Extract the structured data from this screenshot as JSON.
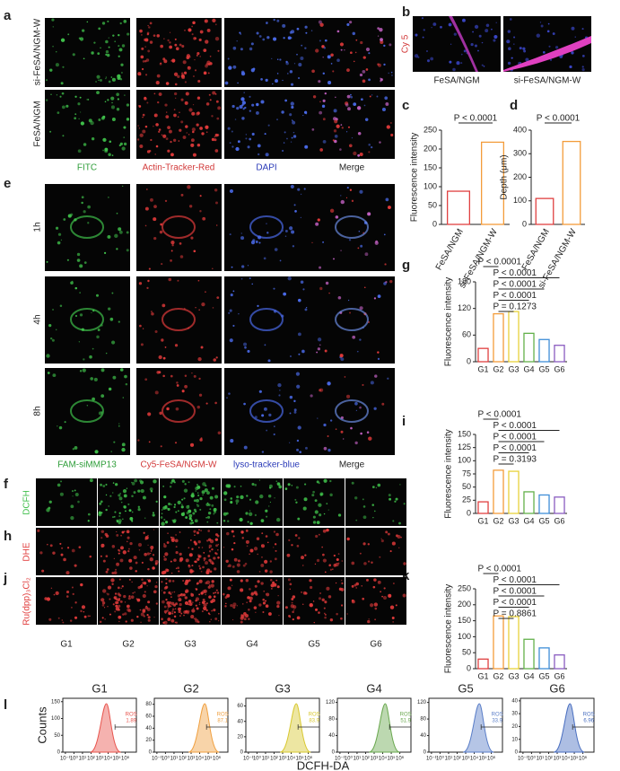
{
  "panels": {
    "letters": [
      "a",
      "b",
      "c",
      "d",
      "e",
      "f",
      "g",
      "h",
      "i",
      "j",
      "k",
      "l"
    ],
    "a": {
      "rows": [
        "si-FeSA/NGM-W",
        "FeSA/NGM"
      ],
      "columns": [
        "FITC",
        "Actin-Tracker-Red",
        "DAPI",
        "Merge"
      ]
    },
    "b": {
      "channel": "Cy 5",
      "columns": [
        "FeSA/NGM",
        "si-FeSA/NGM-W"
      ]
    },
    "e": {
      "rows": [
        "1h",
        "4h",
        "8h"
      ],
      "columns": [
        "FAM-siMMP13",
        "Cy5-FeSA/NGM-W",
        "lyso-tracker-blue",
        "Merge"
      ]
    },
    "fhj": {
      "rows": [
        "DCFH",
        "DHE",
        "Ru(dpp)₃Cl₂"
      ],
      "columns": [
        "G1",
        "G2",
        "G3",
        "G4",
        "G5",
        "G6"
      ]
    },
    "l": {
      "y_label": "Counts",
      "x_label": "DCFH-DA"
    }
  },
  "chart_data": [
    {
      "type": "bar",
      "y_label": "Fluorescence intensity",
      "categories": [
        "FeSA/NGM",
        "si-FeSA/NGM-W"
      ],
      "values": [
        88,
        218
      ],
      "colors": [
        "#e04040",
        "#f39c3a"
      ],
      "ylim": [
        0,
        250
      ],
      "yticks": [
        0,
        50,
        100,
        150,
        200,
        250
      ],
      "annotations": [
        "P < 0.0001"
      ]
    },
    {
      "type": "bar",
      "y_label": "Depth (μm)",
      "categories": [
        "FeSA/NGM",
        "si-FeSA/NGM-W"
      ],
      "values": [
        110,
        352
      ],
      "colors": [
        "#e04040",
        "#f39c3a"
      ],
      "ylim": [
        0,
        400
      ],
      "yticks": [
        0,
        100,
        200,
        300,
        400
      ],
      "annotations": [
        "P < 0.0001"
      ]
    },
    {
      "type": "bar",
      "y_label": "Fluorescence intensity",
      "categories": [
        "G1",
        "G2",
        "G3",
        "G4",
        "G5",
        "G6"
      ],
      "values": [
        30,
        108,
        113,
        64,
        50,
        37
      ],
      "colors": [
        "#e04040",
        "#f39c3a",
        "#e8d23a",
        "#63b04a",
        "#3f8ed8",
        "#8a5cc0"
      ],
      "ylim": [
        0,
        180
      ],
      "yticks": [
        0,
        60,
        120,
        180
      ],
      "annotations": [
        "P < 0.0001",
        "P < 0.0001",
        "P < 0.0001",
        "P < 0.0001",
        "P = 0.1273"
      ]
    },
    {
      "type": "bar",
      "y_label": "Fluorescence intensity",
      "categories": [
        "G1",
        "G2",
        "G3",
        "G4",
        "G5",
        "G6"
      ],
      "values": [
        22,
        82,
        80,
        41,
        35,
        31
      ],
      "colors": [
        "#e04040",
        "#f39c3a",
        "#e8d23a",
        "#63b04a",
        "#3f8ed8",
        "#8a5cc0"
      ],
      "ylim": [
        0,
        150
      ],
      "yticks": [
        0,
        25,
        50,
        75,
        100,
        125,
        150
      ],
      "annotations": [
        "P < 0.0001",
        "P < 0.0001",
        "P < 0.0001",
        "P < 0.0001",
        "P = 0.3193"
      ]
    },
    {
      "type": "bar",
      "y_label": "Fluorescence intensity",
      "categories": [
        "G1",
        "G2",
        "G3",
        "G4",
        "G5",
        "G6"
      ],
      "values": [
        30,
        165,
        163,
        92,
        65,
        43
      ],
      "colors": [
        "#e04040",
        "#f39c3a",
        "#e8d23a",
        "#63b04a",
        "#3f8ed8",
        "#8a5cc0"
      ],
      "ylim": [
        0,
        250
      ],
      "yticks": [
        0,
        50,
        100,
        150,
        200,
        250
      ],
      "annotations": [
        "P < 0.0001",
        "P < 0.0001",
        "P < 0.0001",
        "P < 0.0001",
        "P = 0.8861"
      ]
    },
    {
      "type": "flow",
      "title": "G1",
      "annotation": "ROS",
      "value": 1.89,
      "color": "#e8554e",
      "ylim": [
        0,
        160
      ],
      "yticks": [
        0,
        50,
        100,
        150
      ],
      "log_x": true,
      "xlim": [
        0.05,
        20000000
      ],
      "xticks": [
        {
          "value": 0.1,
          "label": "10⁻¹"
        },
        {
          "value": 1,
          "label": "10⁰"
        },
        {
          "value": 10,
          "label": "10¹"
        },
        {
          "value": 100,
          "label": "10²"
        },
        {
          "value": 1000,
          "label": "10³"
        },
        {
          "value": 10000,
          "label": "10⁴"
        },
        {
          "value": 100000,
          "label": "10⁵"
        },
        {
          "value": 1000000,
          "label": "10⁶"
        }
      ]
    },
    {
      "type": "flow",
      "title": "G2",
      "annotation": "ROS",
      "value": 87.1,
      "color": "#f0a040",
      "ylim": [
        0,
        90
      ],
      "yticks": [
        0,
        20,
        40,
        60,
        80
      ],
      "log_x": true,
      "xlim": [
        0.05,
        20000000
      ],
      "xticks": [
        {
          "value": 0.1,
          "label": "10⁻¹"
        },
        {
          "value": 1,
          "label": "10⁰"
        },
        {
          "value": 10,
          "label": "10¹"
        },
        {
          "value": 100,
          "label": "10²"
        },
        {
          "value": 1000,
          "label": "10³"
        },
        {
          "value": 10000,
          "label": "10⁴"
        },
        {
          "value": 100000,
          "label": "10⁵"
        },
        {
          "value": 1000000,
          "label": "10⁶"
        }
      ]
    },
    {
      "type": "flow",
      "title": "G3",
      "annotation": "ROS",
      "value": 83.9,
      "color": "#d8c830",
      "ylim": [
        0,
        70
      ],
      "yticks": [
        0,
        20,
        40,
        60
      ],
      "log_x": true,
      "xlim": [
        0.05,
        20000000
      ],
      "xticks": [
        {
          "value": 0.1,
          "label": "10⁻¹"
        },
        {
          "value": 1,
          "label": "10⁰"
        },
        {
          "value": 10,
          "label": "10¹"
        },
        {
          "value": 100,
          "label": "10²"
        },
        {
          "value": 1000,
          "label": "10³"
        },
        {
          "value": 10000,
          "label": "10⁴"
        },
        {
          "value": 100000,
          "label": "10⁵"
        },
        {
          "value": 1000000,
          "label": "10⁶"
        }
      ]
    },
    {
      "type": "flow",
      "title": "G4",
      "annotation": "ROS",
      "value": 51.9,
      "color": "#6aa84f",
      "ylim": [
        0,
        130
      ],
      "yticks": [
        0,
        40,
        80,
        120
      ],
      "log_x": true,
      "xlim": [
        0.05,
        20000000
      ],
      "xticks": [
        {
          "value": 0.1,
          "label": "10⁻¹"
        },
        {
          "value": 1,
          "label": "10⁰"
        },
        {
          "value": 10,
          "label": "10¹"
        },
        {
          "value": 100,
          "label": "10²"
        },
        {
          "value": 1000,
          "label": "10³"
        },
        {
          "value": 10000,
          "label": "10⁴"
        },
        {
          "value": 100000,
          "label": "10⁵"
        },
        {
          "value": 1000000,
          "label": "10⁶"
        }
      ]
    },
    {
      "type": "flow",
      "title": "G5",
      "annotation": "ROS",
      "value": 33.9,
      "color": "#5a7ec8",
      "ylim": [
        0,
        130
      ],
      "yticks": [
        0,
        40,
        80,
        120
      ],
      "log_x": true,
      "xlim": [
        0.05,
        20000000
      ],
      "xticks": [
        {
          "value": 0.1,
          "label": "10⁻¹"
        },
        {
          "value": 1,
          "label": "10⁰"
        },
        {
          "value": 10,
          "label": "10¹"
        },
        {
          "value": 100,
          "label": "10²"
        },
        {
          "value": 1000,
          "label": "10³"
        },
        {
          "value": 10000,
          "label": "10⁴"
        },
        {
          "value": 100000,
          "label": "10⁵"
        },
        {
          "value": 1000000,
          "label": "10⁶"
        }
      ]
    },
    {
      "type": "flow",
      "title": "G6",
      "annotation": "ROS",
      "value": 6.96,
      "color": "#4a6fc0",
      "ylim": [
        0,
        42
      ],
      "yticks": [
        0,
        10,
        20,
        30,
        40
      ],
      "log_x": true,
      "xlim": [
        0.05,
        20000000
      ],
      "xticks": [
        {
          "value": 0.1,
          "label": "10⁻¹"
        },
        {
          "value": 1,
          "label": "10⁰"
        },
        {
          "value": 10,
          "label": "10¹"
        },
        {
          "value": 100,
          "label": "10²"
        },
        {
          "value": 1000,
          "label": "10³"
        },
        {
          "value": 10000,
          "label": "10⁴"
        },
        {
          "value": 100000,
          "label": "10⁵"
        },
        {
          "value": 1000000,
          "label": "10⁶"
        }
      ]
    }
  ]
}
